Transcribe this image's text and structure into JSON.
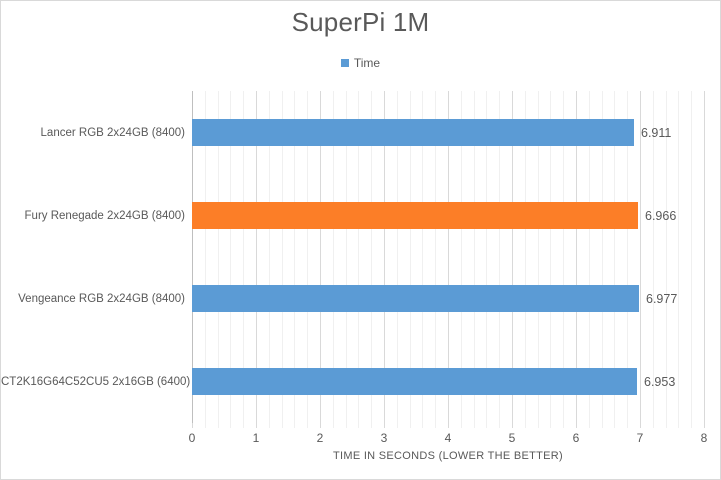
{
  "chart_data": {
    "type": "bar",
    "orientation": "horizontal",
    "title": "SuperPi 1M",
    "legend": [
      {
        "label": "Time",
        "color": "#5B9BD5"
      }
    ],
    "legend_position": "top",
    "categories": [
      "Lancer RGB 2x24GB (8400)",
      "Fury Renegade 2x24GB (8400)",
      "Vengeance RGB 2x24GB (8400)",
      "CT2K16G64C52CU5 2x16GB (6400)"
    ],
    "values": [
      6.911,
      6.966,
      6.977,
      6.953
    ],
    "value_labels": [
      "6.911",
      "6.966",
      "6.977",
      "6.953"
    ],
    "bar_colors": [
      "#5B9BD5",
      "#FC7E27",
      "#5B9BD5",
      "#5B9BD5"
    ],
    "highlighted_category_index": 1,
    "xlabel": "TIME IN SECONDS (LOWER THE BETTER)",
    "ylabel": "",
    "xlim": [
      0,
      8
    ],
    "x_ticks": [
      "0",
      "1",
      "2",
      "3",
      "4",
      "5",
      "6",
      "7",
      "8"
    ],
    "x_major_unit": 1,
    "x_minor_unit": 0.2,
    "grid": "major-and-minor-vertical"
  },
  "colors": {
    "bar_blue": "#5B9BD5",
    "bar_orange": "#FC7E27",
    "text_gray": "#595959",
    "gridline_major": "#D9D9D9",
    "gridline_minor": "#F0F0F0",
    "axis_line": "#BFBFBF",
    "frame_border": "#D9D9D9",
    "background": "#FFFFFF"
  }
}
